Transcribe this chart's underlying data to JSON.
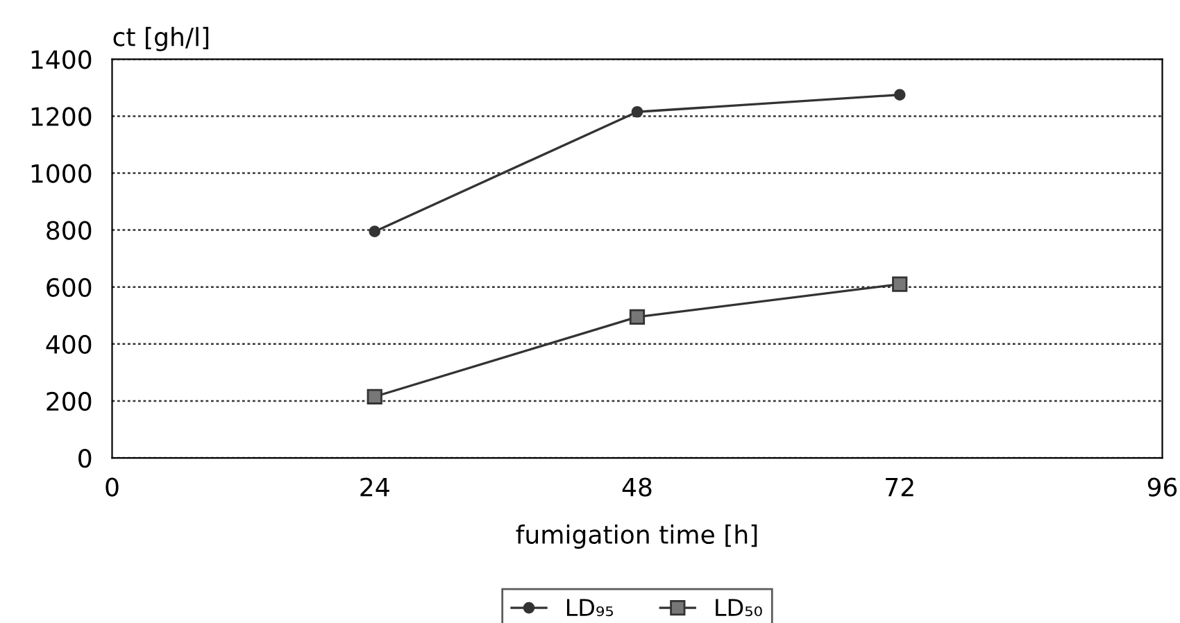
{
  "chart_data": {
    "type": "line",
    "ylabel": "ct [gh/l]",
    "xlabel": "fumigation time [h]",
    "x": [
      24,
      48,
      72
    ],
    "series": [
      {
        "name": "LD₉₅",
        "color": "#333333",
        "marker": "circle",
        "values": [
          795,
          1215,
          1275
        ]
      },
      {
        "name": "LD₅₀",
        "color": "#333333",
        "marker": "square",
        "values": [
          215,
          495,
          610
        ]
      }
    ],
    "xlim": [
      0,
      96
    ],
    "xticks": [
      0,
      24,
      48,
      72,
      96
    ],
    "ylim": [
      0,
      1400
    ],
    "yticks": [
      0,
      200,
      400,
      600,
      800,
      1000,
      1200,
      1400
    ],
    "grid": "y",
    "legend": "bottom",
    "line_style": "solid"
  }
}
